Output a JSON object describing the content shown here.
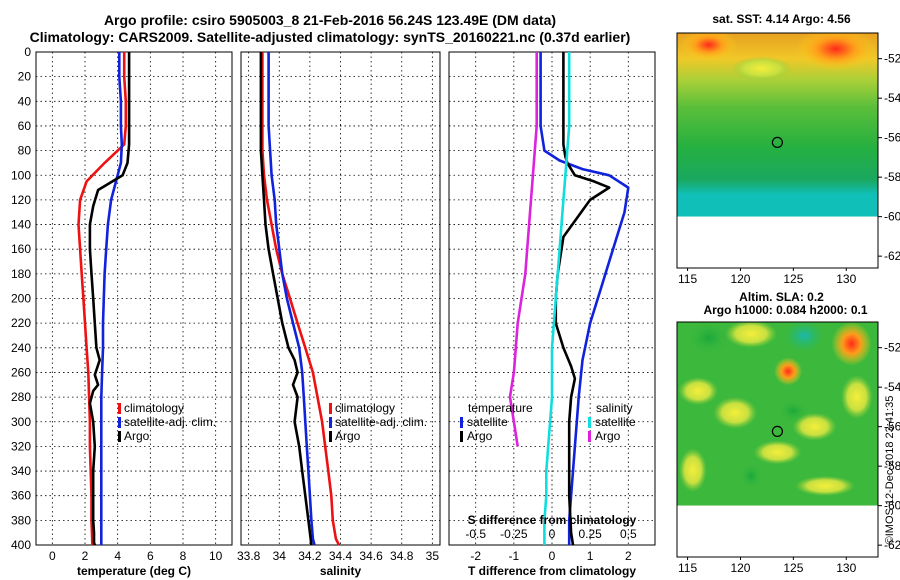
{
  "header": {
    "title_line1": "Argo profile: csiro 5905003_8 21-Feb-2016 56.24S 123.49E (DM data)",
    "title_line2": "Climatology: CARS2009. Satellite-adjusted climatology: synTS_20160221.nc (0.37d earlier)"
  },
  "watermark": "©IMOS 12-Dec-2018 23:41:35",
  "colors": {
    "climatology": "#ee1111",
    "satellite": "#1122dd",
    "argo": "#000000",
    "salinity_diff": "#11dddd",
    "temp_diff": "#dd22dd"
  },
  "chart_data": [
    {
      "type": "line",
      "id": "temperature",
      "xlabel": "temperature (deg C)",
      "ylabel": "depth",
      "xlim": [
        -1,
        11
      ],
      "ylim": [
        400,
        0
      ],
      "xticks": [
        0,
        2,
        4,
        6,
        8,
        10
      ],
      "yticks": [
        0,
        20,
        40,
        60,
        80,
        100,
        120,
        140,
        160,
        180,
        200,
        220,
        240,
        260,
        280,
        300,
        320,
        340,
        360,
        380,
        400
      ],
      "legend": [
        "climatology",
        "satellite-adj. clim.",
        "Argo"
      ],
      "series": [
        {
          "name": "climatology",
          "color": "#ee1111",
          "x": [
            4.4,
            4.4,
            4.5,
            4.5,
            4.4,
            3.2,
            2.1,
            1.7,
            1.6,
            1.7,
            1.8,
            1.9,
            2.0,
            2.1,
            2.2,
            2.25,
            2.3,
            2.3,
            2.35,
            2.4,
            2.4,
            2.45
          ],
          "y": [
            0,
            20,
            40,
            60,
            75,
            90,
            105,
            120,
            140,
            160,
            180,
            200,
            220,
            240,
            260,
            280,
            300,
            320,
            340,
            360,
            380,
            400
          ]
        },
        {
          "name": "satellite-adj. clim.",
          "color": "#1122dd",
          "x": [
            4.1,
            4.1,
            4.2,
            4.2,
            4.25,
            4.2,
            3.9,
            3.6,
            3.4,
            3.3,
            3.2,
            3.15,
            3.1,
            3.1,
            3.05,
            3.0,
            3.0,
            3.0,
            3.0,
            3.0,
            3.0,
            3.0
          ],
          "y": [
            0,
            20,
            40,
            60,
            75,
            90,
            105,
            120,
            140,
            160,
            180,
            200,
            220,
            240,
            260,
            280,
            300,
            320,
            340,
            360,
            380,
            400
          ]
        },
        {
          "name": "Argo",
          "color": "#000000",
          "x": [
            4.7,
            4.7,
            4.7,
            4.7,
            4.7,
            4.7,
            4.6,
            4.3,
            2.8,
            2.5,
            2.3,
            2.3,
            2.4,
            2.5,
            2.6,
            2.7,
            2.9,
            2.6,
            2.8,
            2.5,
            2.3,
            2.5,
            2.6,
            2.5,
            2.5,
            2.5,
            2.55,
            2.55,
            2.6
          ],
          "y": [
            0,
            20,
            40,
            50,
            60,
            75,
            90,
            100,
            112,
            125,
            140,
            160,
            180,
            200,
            220,
            240,
            250,
            262,
            270,
            275,
            285,
            300,
            320,
            340,
            360,
            380,
            390,
            398,
            400
          ]
        }
      ]
    },
    {
      "type": "line",
      "id": "salinity",
      "xlabel": "salinity",
      "ylabel": "depth",
      "xlim": [
        33.75,
        35.05
      ],
      "ylim": [
        400,
        0
      ],
      "xticks": [
        33.8,
        34,
        34.2,
        34.4,
        34.6,
        34.8,
        35
      ],
      "xtick_labels": [
        "33.8",
        "34",
        "34.2",
        "34.4",
        "34.6",
        "34.8",
        "35"
      ],
      "legend": [
        "climatology",
        "satellite-adj. clim.",
        "Argo"
      ],
      "series": [
        {
          "name": "climatology",
          "color": "#ee1111",
          "x": [
            33.89,
            33.89,
            33.89,
            33.89,
            33.89,
            33.9,
            33.92,
            33.95,
            33.98,
            34.02,
            34.07,
            34.12,
            34.17,
            34.22,
            34.25,
            34.28,
            34.3,
            34.32,
            34.34,
            34.35,
            34.37,
            34.39
          ],
          "y": [
            0,
            20,
            40,
            60,
            80,
            100,
            120,
            140,
            160,
            180,
            200,
            220,
            240,
            260,
            280,
            300,
            320,
            340,
            360,
            380,
            395,
            400
          ]
        },
        {
          "name": "satellite-adj. clim.",
          "color": "#1122dd",
          "x": [
            33.93,
            33.93,
            33.93,
            33.93,
            33.94,
            33.95,
            33.97,
            33.98,
            34.0,
            34.02,
            34.05,
            34.09,
            34.13,
            34.15,
            34.16,
            34.17,
            34.18,
            34.19,
            34.2,
            34.21,
            34.22,
            34.23
          ],
          "y": [
            0,
            20,
            40,
            60,
            80,
            100,
            120,
            140,
            160,
            180,
            200,
            220,
            240,
            260,
            280,
            300,
            320,
            340,
            360,
            380,
            395,
            400
          ]
        },
        {
          "name": "Argo",
          "color": "#000000",
          "x": [
            33.88,
            33.88,
            33.88,
            33.88,
            33.88,
            33.89,
            33.9,
            33.91,
            33.93,
            33.96,
            33.99,
            34.02,
            34.06,
            34.1,
            34.12,
            34.09,
            34.12,
            34.1,
            34.13,
            34.15,
            34.17,
            34.19,
            34.21
          ],
          "y": [
            0,
            20,
            40,
            60,
            80,
            100,
            120,
            140,
            160,
            180,
            200,
            220,
            240,
            250,
            260,
            270,
            280,
            300,
            320,
            340,
            360,
            380,
            400
          ]
        }
      ]
    },
    {
      "type": "line",
      "id": "difference",
      "xlabel": "T difference from climatology",
      "xlabel_top": "S difference from climatology",
      "xlim": [
        -2.7,
        2.7
      ],
      "ylim": [
        400,
        0
      ],
      "xticks": [
        -2,
        -1,
        0,
        1,
        2
      ],
      "xticks_top": [
        "-0.5",
        "-0.25",
        "0",
        "0.25",
        "0.5"
      ],
      "xticks_top_values": [
        -2,
        -1,
        0,
        1,
        2
      ],
      "legend_temperature": {
        "heading": "temperature",
        "items": [
          "satellite",
          "Argo"
        ]
      },
      "legend_salinity": {
        "heading": "salinity",
        "items": [
          "satellite",
          "Argo"
        ]
      },
      "series": [
        {
          "name": "T satellite",
          "color": "#1122dd",
          "x": [
            -0.3,
            -0.3,
            -0.3,
            -0.3,
            -0.25,
            -0.2,
            0.2,
            0.8,
            1.5,
            2.0,
            1.9,
            1.6,
            1.3,
            1.0,
            0.8,
            0.7,
            0.65,
            0.6,
            0.55,
            0.5,
            0.45,
            0.45,
            0.45
          ],
          "y": [
            0,
            20,
            40,
            60,
            70,
            80,
            88,
            95,
            100,
            110,
            130,
            160,
            190,
            220,
            250,
            280,
            300,
            320,
            340,
            360,
            380,
            395,
            400
          ]
        },
        {
          "name": "T Argo",
          "color": "#000000",
          "x": [
            0.3,
            0.3,
            0.3,
            0.3,
            0.3,
            0.35,
            0.4,
            0.6,
            1.1,
            1.5,
            1.0,
            0.3,
            0.15,
            0.1,
            0.1,
            0.3,
            0.5,
            0.6,
            0.5,
            0.45,
            0.45,
            0.45,
            0.5,
            0.55
          ],
          "y": [
            0,
            20,
            40,
            60,
            75,
            85,
            90,
            100,
            105,
            110,
            120,
            150,
            180,
            200,
            220,
            240,
            255,
            265,
            280,
            300,
            330,
            360,
            390,
            400
          ]
        },
        {
          "name": "S satellite",
          "color": "#11dddd",
          "x": [
            0.45,
            0.45,
            0.45,
            0.45,
            0.4,
            0.35,
            0.3,
            0.25,
            0.2,
            0.15,
            0.1,
            0.05,
            0.0,
            0.0,
            0.0,
            -0.05,
            -0.1,
            -0.15,
            -0.15,
            -0.2,
            -0.2,
            -0.2,
            -0.2
          ],
          "y": [
            0,
            20,
            40,
            60,
            80,
            100,
            120,
            140,
            160,
            180,
            200,
            220,
            240,
            260,
            280,
            300,
            320,
            340,
            360,
            380,
            390,
            398,
            400
          ]
        },
        {
          "name": "S Argo",
          "color": "#dd22dd",
          "x": [
            -0.4,
            -0.4,
            -0.4,
            -0.4,
            -0.45,
            -0.5,
            -0.55,
            -0.6,
            -0.65,
            -0.7,
            -0.8,
            -0.9,
            -0.95,
            -1.0,
            -1.05,
            -1.1,
            -1.05,
            -1.0,
            -0.95,
            -0.9
          ],
          "y": [
            0,
            20,
            40,
            60,
            80,
            100,
            120,
            140,
            160,
            180,
            200,
            220,
            240,
            260,
            270,
            280,
            290,
            300,
            310,
            320
          ]
        }
      ]
    },
    {
      "type": "heatmap",
      "id": "sst-map",
      "title": "sat. SST: 4.14  Argo: 4.56",
      "xticks": [
        115,
        120,
        125,
        130
      ],
      "yticks": [
        -52,
        -54,
        -56,
        -58,
        -60,
        -62
      ],
      "xlim": [
        114,
        133
      ],
      "ylim": [
        -62.6,
        -50.7
      ],
      "marker": {
        "lon": 123.49,
        "lat": -56.24
      }
    },
    {
      "type": "heatmap",
      "id": "sla-map",
      "title": "Altim. SLA: 0.2",
      "subtitle": "Argo h1000: 0.084  h2000: 0.1",
      "xticks": [
        115,
        120,
        125,
        130
      ],
      "yticks": [
        -52,
        -54,
        -56,
        -58,
        -60,
        -62
      ],
      "xlim": [
        114,
        133
      ],
      "ylim": [
        -62.6,
        -50.7
      ],
      "marker": {
        "lon": 123.49,
        "lat": -56.24
      }
    }
  ]
}
